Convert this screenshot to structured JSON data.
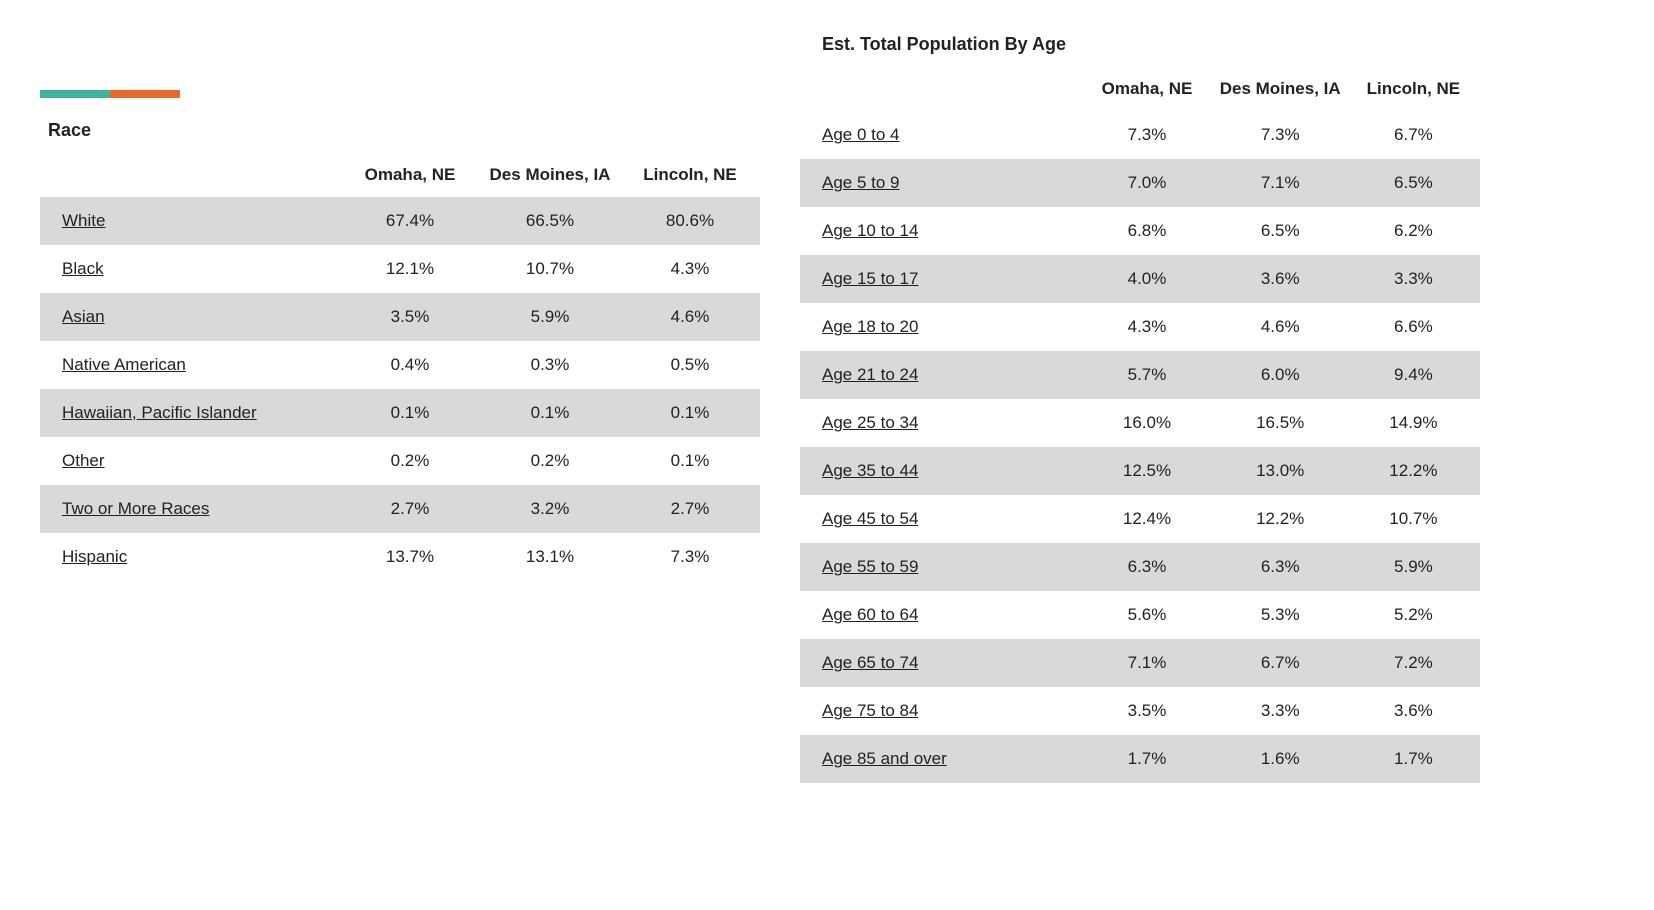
{
  "colors": {
    "bar_seg_a": "#3fb39d",
    "bar_seg_b": "#e86a2a",
    "row_odd_bg": "#d9d9d9",
    "row_even_bg": "#ffffff",
    "text": "#222222"
  },
  "race": {
    "title": "Race",
    "columns": [
      "Omaha, NE",
      "Des Moines, IA",
      "Lincoln, NE"
    ],
    "rows": [
      {
        "label": "White",
        "values": [
          "67.4%",
          "66.5%",
          "80.6%"
        ]
      },
      {
        "label": "Black",
        "values": [
          "12.1%",
          "10.7%",
          "4.3%"
        ]
      },
      {
        "label": "Asian",
        "values": [
          "3.5%",
          "5.9%",
          "4.6%"
        ]
      },
      {
        "label": "Native American",
        "values": [
          "0.4%",
          "0.3%",
          "0.5%"
        ]
      },
      {
        "label": "Hawaiian, Pacific Islander",
        "values": [
          "0.1%",
          "0.1%",
          "0.1%"
        ]
      },
      {
        "label": "Other",
        "values": [
          "0.2%",
          "0.2%",
          "0.1%"
        ]
      },
      {
        "label": "Two or More Races",
        "values": [
          "2.7%",
          "3.2%",
          "2.7%"
        ]
      },
      {
        "label": "Hispanic",
        "values": [
          "13.7%",
          "13.1%",
          "7.3%"
        ]
      }
    ]
  },
  "age": {
    "title": "Est. Total Population By Age",
    "columns": [
      "Omaha, NE",
      "Des Moines, IA",
      "Lincoln, NE"
    ],
    "rows": [
      {
        "label": "Age 0 to 4",
        "values": [
          "7.3%",
          "7.3%",
          "6.7%"
        ]
      },
      {
        "label": "Age 5 to 9",
        "values": [
          "7.0%",
          "7.1%",
          "6.5%"
        ]
      },
      {
        "label": "Age 10 to 14",
        "values": [
          "6.8%",
          "6.5%",
          "6.2%"
        ]
      },
      {
        "label": "Age 15 to 17",
        "values": [
          "4.0%",
          "3.6%",
          "3.3%"
        ]
      },
      {
        "label": "Age 18 to 20",
        "values": [
          "4.3%",
          "4.6%",
          "6.6%"
        ]
      },
      {
        "label": "Age 21 to 24",
        "values": [
          "5.7%",
          "6.0%",
          "9.4%"
        ]
      },
      {
        "label": "Age 25 to 34",
        "values": [
          "16.0%",
          "16.5%",
          "14.9%"
        ]
      },
      {
        "label": "Age 35 to 44",
        "values": [
          "12.5%",
          "13.0%",
          "12.2%"
        ]
      },
      {
        "label": "Age 45 to 54",
        "values": [
          "12.4%",
          "12.2%",
          "10.7%"
        ]
      },
      {
        "label": "Age 55 to 59",
        "values": [
          "6.3%",
          "6.3%",
          "5.9%"
        ]
      },
      {
        "label": "Age 60 to 64",
        "values": [
          "5.6%",
          "5.3%",
          "5.2%"
        ]
      },
      {
        "label": "Age 65 to 74",
        "values": [
          "7.1%",
          "6.7%",
          "7.2%"
        ]
      },
      {
        "label": "Age 75 to 84",
        "values": [
          "3.5%",
          "3.3%",
          "3.6%"
        ]
      },
      {
        "label": "Age 85 and over",
        "values": [
          "1.7%",
          "1.6%",
          "1.7%"
        ]
      }
    ]
  }
}
